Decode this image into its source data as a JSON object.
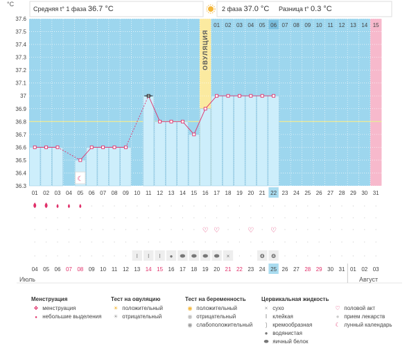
{
  "header": {
    "unit": "°C",
    "phase1_label": "Средняя t° 1 фаза",
    "phase1_value": "36.7 °C",
    "phase2_label": "2 фаза",
    "phase2_value": "37.0 °C",
    "diff_label": "Разница t°",
    "diff_value": "0.3 °C"
  },
  "ovulation_label": "ОВУЛЯЦИЯ",
  "month_labels": {
    "left": "Июль",
    "right": "Август"
  },
  "colors": {
    "phase1_bg": "#9dd6ee",
    "phase2_bg": "#9dd6ee",
    "ovulation_bg": "#fbeaa0",
    "period_end_bg": "#f7b9cc",
    "bar_fill": "#cdeefb",
    "line": "#e0306a",
    "coverline": "#e8e89a",
    "highlight": "#a9dcf0",
    "weekend": "#e0306a"
  },
  "chart_data": {
    "type": "line",
    "ylim": [
      36.3,
      37.6
    ],
    "yticks": [
      "36.3",
      "36.4",
      "36.5",
      "36.6",
      "36.7",
      "36.8",
      "36.9",
      "37",
      "37.1",
      "37.2",
      "37.3",
      "37.4",
      "37.5",
      "37.6"
    ],
    "coverline": 36.8,
    "cycle_days": [
      "01",
      "02",
      "03",
      "04",
      "05",
      "06",
      "07",
      "08",
      "09",
      "10",
      "11",
      "12",
      "13",
      "14",
      "15",
      "16",
      "17",
      "18",
      "19",
      "20",
      "21",
      "22",
      "23",
      "24",
      "25",
      "26",
      "27",
      "28",
      "29",
      "30",
      "31"
    ],
    "phase2_days": [
      "01",
      "02",
      "03",
      "04",
      "05",
      "06",
      "07",
      "08",
      "09",
      "10",
      "11",
      "12",
      "13",
      "14",
      "15"
    ],
    "today_cycle_day": "22",
    "ovulation_day": "16",
    "calendar_dates": [
      "04",
      "05",
      "06",
      "07",
      "08",
      "09",
      "10",
      "11",
      "12",
      "13",
      "14",
      "15",
      "16",
      "17",
      "18",
      "19",
      "20",
      "21",
      "22",
      "23",
      "24",
      "25",
      "26",
      "27",
      "28",
      "29",
      "30",
      "31",
      "01",
      "02",
      "03"
    ],
    "weekend_dates": [
      3,
      4,
      10,
      11,
      17,
      18,
      24,
      25
    ],
    "today_calendar_index": 21,
    "temperatures": [
      36.6,
      36.6,
      36.6,
      null,
      36.5,
      36.6,
      36.6,
      36.6,
      36.6,
      null,
      37.0,
      36.8,
      36.8,
      36.8,
      36.7,
      36.9,
      37.0,
      37.0,
      37.0,
      37.0,
      37.0,
      37.0,
      null,
      null,
      null,
      null,
      null,
      null,
      null,
      null,
      null
    ],
    "bar_days": [
      1,
      2,
      3,
      5,
      6,
      7,
      8,
      9,
      10,
      11,
      12,
      13,
      14,
      15,
      16,
      17,
      18,
      19,
      20,
      21,
      22
    ],
    "menstruation": [
      1,
      1,
      1,
      1,
      1,
      0,
      0,
      0,
      0,
      0,
      0,
      0,
      0,
      0,
      0,
      0,
      0,
      0,
      0,
      0,
      0,
      0,
      0,
      0,
      0,
      0,
      0,
      0,
      0,
      0,
      0
    ],
    "intercourse_days": [
      16,
      17,
      20,
      22
    ],
    "moon_day": 5,
    "fluid": {
      "9": "sticky",
      "10": "sticky",
      "11": "sticky",
      "12": "watery",
      "13": "eggwhite",
      "14": "eggwhite",
      "15": "eggwhite",
      "16": "eggwhite",
      "17": "dry",
      "20": "creamy",
      "21": "creamy"
    }
  },
  "legend": {
    "menstruation": {
      "title": "Менструация",
      "items": [
        "менструация",
        "небольшие выделения"
      ]
    },
    "ovulation_test": {
      "title": "Тест на овуляцию",
      "items": [
        "положительный",
        "отрицательный"
      ]
    },
    "pregnancy_test": {
      "title": "Тест на беременность",
      "items": [
        "положительный",
        "отрицательный",
        "слабоположительный"
      ]
    },
    "cervical_fluid": {
      "title": "Цервикальная жидкость",
      "items": [
        "сухо",
        "клейкая",
        "кремообразная",
        "водянистая",
        "яичный белок"
      ]
    },
    "other": {
      "items": [
        "половой акт",
        "прием лекарств",
        "лунный календарь"
      ]
    }
  }
}
